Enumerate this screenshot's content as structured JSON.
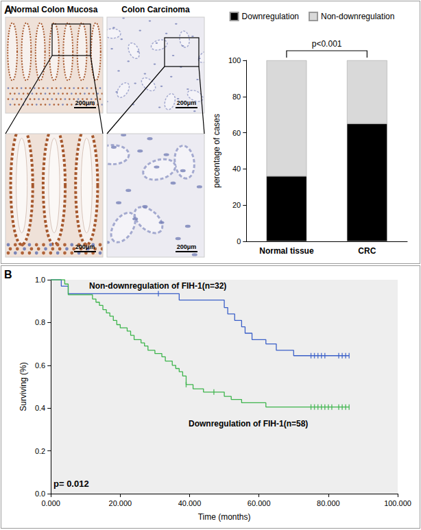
{
  "panel_labels": [
    "A",
    "B"
  ],
  "images": [
    {
      "title": "Normal Colon Mucosa",
      "scale_bar_labels": [
        "200μm",
        "200μm"
      ]
    },
    {
      "title": "Colon Carcinoma",
      "scale_bar_labels": [
        "200μm",
        "200μm"
      ]
    }
  ],
  "chart_data": [
    {
      "type": "bar",
      "categories": [
        "Normal tissue",
        "CRC"
      ],
      "series": [
        {
          "name": "Downregulation",
          "color": "#000000",
          "values": [
            36,
            65
          ]
        },
        {
          "name": "Non-downregulation",
          "color": "#d9d9d9",
          "values": [
            64,
            35
          ]
        }
      ],
      "stacked": true,
      "ylabel": "percentage of cases",
      "ylim": [
        0,
        100
      ],
      "yticks": [
        0,
        20,
        40,
        60,
        80,
        100
      ],
      "legend": "top",
      "grid": false,
      "annotations": [
        "p<0.001"
      ]
    },
    {
      "type": "line",
      "xlabel": "Time (months)",
      "ylabel": "Surviving (%)",
      "xlim": [
        0,
        100
      ],
      "xticks": [
        {
          "value": 0,
          "label": "0.000"
        },
        {
          "value": 20,
          "label": "20.000"
        },
        {
          "value": 40,
          "label": "40.000"
        },
        {
          "value": 60,
          "label": "60.000"
        },
        {
          "value": 80,
          "label": "80.000"
        },
        {
          "value": 100,
          "label": "100.000"
        }
      ],
      "ylim": [
        0,
        1
      ],
      "yticks": [
        {
          "value": 0,
          "label": "0.0"
        },
        {
          "value": 0.2,
          "label": "0.2"
        },
        {
          "value": 0.4,
          "label": "0.4"
        },
        {
          "value": 0.6,
          "label": "0.6"
        },
        {
          "value": 0.8,
          "label": "0.8"
        },
        {
          "value": 1,
          "label": "1.0"
        }
      ],
      "line_style": "step",
      "grid": false,
      "annotations": [
        "p= 0.012"
      ],
      "series": [
        {
          "name": "Non-downregulation of FIH-1(n=32)",
          "color": "#3a5fc8",
          "x": [
            0,
            3,
            5,
            37,
            50,
            51,
            53,
            55,
            56,
            58,
            62,
            65,
            70,
            86
          ],
          "values": [
            1,
            0.97,
            0.935,
            0.905,
            0.87,
            0.84,
            0.81,
            0.78,
            0.75,
            0.72,
            0.7,
            0.67,
            0.645,
            0.645
          ],
          "censored_x": [
            31,
            75,
            76,
            77,
            78,
            79,
            83,
            84,
            85,
            86
          ],
          "censored_values": [
            0.935,
            0.645,
            0.645,
            0.645,
            0.645,
            0.645,
            0.645,
            0.645,
            0.645,
            0.645
          ]
        },
        {
          "name": "Downregulation of FIH-1(n=58)",
          "color": "#3cb44b",
          "x": [
            0,
            4,
            5,
            12,
            13,
            14,
            15,
            16,
            17,
            18,
            19,
            20,
            22,
            23,
            24,
            26,
            27,
            28,
            30,
            32,
            33,
            35,
            36,
            37,
            38,
            39,
            41,
            44,
            50,
            52,
            55,
            62,
            86
          ],
          "values": [
            1,
            0.98,
            0.93,
            0.91,
            0.895,
            0.88,
            0.86,
            0.845,
            0.83,
            0.81,
            0.79,
            0.775,
            0.76,
            0.74,
            0.72,
            0.705,
            0.69,
            0.67,
            0.655,
            0.64,
            0.62,
            0.6,
            0.585,
            0.57,
            0.55,
            0.51,
            0.49,
            0.475,
            0.455,
            0.44,
            0.425,
            0.405,
            0.405
          ],
          "censored_x": [
            39,
            47,
            75,
            76,
            77,
            78,
            79,
            80,
            81,
            83,
            84,
            85,
            86
          ],
          "censored_values": [
            0.51,
            0.475,
            0.405,
            0.405,
            0.405,
            0.405,
            0.405,
            0.405,
            0.405,
            0.405,
            0.405,
            0.405,
            0.405
          ]
        }
      ]
    }
  ]
}
